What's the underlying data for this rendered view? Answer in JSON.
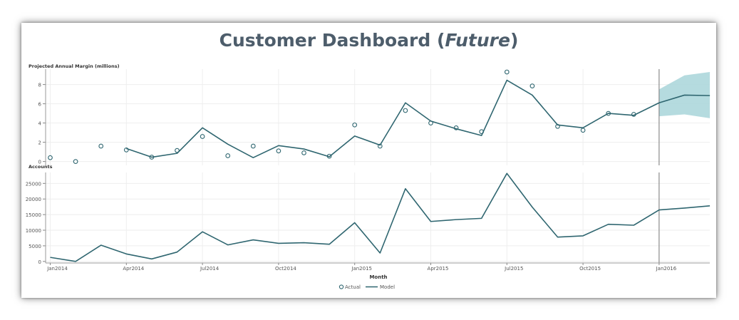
{
  "dashboard": {
    "title_main": "Customer Dashboard",
    "title_open": "(",
    "title_em": "Future",
    "title_close": ")"
  },
  "chart_data": [
    {
      "type": "line",
      "ylabel": "Projected Annual Margin (millions)",
      "ylim": [
        -0.4,
        9.6
      ],
      "yticks": [
        0,
        2,
        4,
        6,
        8
      ],
      "x_dates": [
        "2014-01",
        "2014-02",
        "2014-03",
        "2014-04",
        "2014-05",
        "2014-06",
        "2014-07",
        "2014-08",
        "2014-09",
        "2014-10",
        "2014-11",
        "2014-12",
        "2015-01",
        "2015-02",
        "2015-03",
        "2015-04",
        "2015-05",
        "2015-06",
        "2015-07",
        "2015-08",
        "2015-09",
        "2015-10",
        "2015-11",
        "2015-12",
        "2016-01",
        "2016-02",
        "2016-03"
      ],
      "series": [
        {
          "name": "Actual",
          "style": "markers",
          "color": "#2f6670",
          "values": [
            0.4,
            0.0,
            1.6,
            1.2,
            0.45,
            1.15,
            2.6,
            0.6,
            1.6,
            1.1,
            0.9,
            0.55,
            3.8,
            1.6,
            5.3,
            4.0,
            3.5,
            3.1,
            9.3,
            7.85,
            3.65,
            3.25,
            5.0,
            4.9,
            null,
            null,
            null
          ]
        },
        {
          "name": "Model",
          "style": "line",
          "color": "#2f6670",
          "values": [
            null,
            null,
            null,
            1.35,
            0.45,
            0.85,
            3.5,
            1.8,
            0.4,
            1.65,
            1.3,
            0.5,
            2.65,
            1.7,
            6.1,
            4.2,
            3.4,
            2.7,
            8.45,
            6.9,
            3.8,
            3.5,
            5.0,
            4.8,
            6.1,
            6.9,
            6.85
          ]
        }
      ],
      "forecast_band": {
        "color": "#a8d5d9",
        "x_dates": [
          "2016-01",
          "2016-02",
          "2016-03"
        ],
        "lower": [
          4.7,
          4.9,
          4.5
        ],
        "upper": [
          7.5,
          8.95,
          9.3
        ]
      },
      "reference_line_date": "2016-01"
    },
    {
      "type": "line",
      "ylabel": "Accounts",
      "xlabel": "Month",
      "ylim": [
        -500,
        28500
      ],
      "yticks": [
        0,
        5000,
        10000,
        15000,
        20000,
        25000
      ],
      "x_dates": [
        "2014-01",
        "2014-02",
        "2014-03",
        "2014-04",
        "2014-05",
        "2014-06",
        "2014-07",
        "2014-08",
        "2014-09",
        "2014-10",
        "2014-11",
        "2014-12",
        "2015-01",
        "2015-02",
        "2015-03",
        "2015-04",
        "2015-05",
        "2015-06",
        "2015-07",
        "2015-08",
        "2015-09",
        "2015-10",
        "2015-11",
        "2015-12",
        "2016-01",
        "2016-02",
        "2016-03"
      ],
      "series": [
        {
          "name": "Model",
          "style": "line",
          "color": "#2f6670",
          "values": [
            1300,
            0,
            5200,
            2400,
            800,
            3000,
            9500,
            5300,
            6900,
            5800,
            6000,
            5500,
            12400,
            2700,
            23300,
            12800,
            13400,
            13800,
            28200,
            17400,
            7800,
            8200,
            11900,
            11600,
            16500,
            17100,
            17800
          ]
        }
      ],
      "xticks": [
        {
          "date": "2014-01",
          "label": "Jan2014"
        },
        {
          "date": "2014-04",
          "label": "Apr2014"
        },
        {
          "date": "2014-07",
          "label": "Jul2014"
        },
        {
          "date": "2014-10",
          "label": "Oct2014"
        },
        {
          "date": "2015-01",
          "label": "Jan2015"
        },
        {
          "date": "2015-04",
          "label": "Apr2015"
        },
        {
          "date": "2015-07",
          "label": "Jul2015"
        },
        {
          "date": "2015-10",
          "label": "Oct2015"
        },
        {
          "date": "2016-01",
          "label": "Jan2016"
        }
      ],
      "reference_line_date": "2016-01"
    }
  ],
  "legend": {
    "placement": "bottom",
    "items": [
      {
        "name": "Actual",
        "marker": "circle"
      },
      {
        "name": "Model",
        "marker": "line"
      }
    ]
  }
}
